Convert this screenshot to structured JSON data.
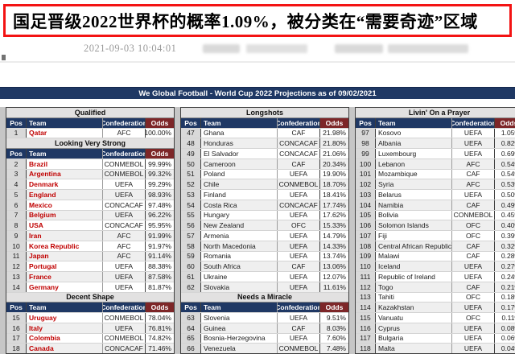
{
  "headline": {
    "text": "国足晋级2022世界杯的概率1.09%，被分类在“需要奇迹”区域"
  },
  "meta": {
    "timestamp": "2021-09-03 10:04:01"
  },
  "colors": {
    "headline_border": "#f31313",
    "navy_header": "#1f3864",
    "odds_header_red": "#7d2628",
    "team_name_red": "#c00000",
    "section_bg": "#e2e1e1",
    "pos_column_bg": "#d9d9d9",
    "row_stripe": "#efefef"
  },
  "table": {
    "title": "We Global Football - World Cup 2022 Projections as of 09/02/2021",
    "columns": [
      "Pos",
      "Team",
      "Confederation",
      "Odds"
    ],
    "panels": [
      {
        "accent_team_names": true,
        "blocks": [
          {
            "section": "Qualified",
            "rows": [
              [
                "1",
                "Qatar",
                "AFC",
                "100.00%"
              ]
            ]
          },
          {
            "section": "Looking Very Strong",
            "rows": [
              [
                "2",
                "Brazil",
                "CONMEBOL",
                "99.99%"
              ],
              [
                "3",
                "Argentina",
                "CONMEBOL",
                "99.32%"
              ],
              [
                "4",
                "Denmark",
                "UEFA",
                "99.29%"
              ],
              [
                "5",
                "England",
                "UEFA",
                "98.93%"
              ],
              [
                "6",
                "Mexico",
                "CONCACAF",
                "97.48%"
              ],
              [
                "7",
                "Belgium",
                "UEFA",
                "96.22%"
              ],
              [
                "8",
                "USA",
                "CONCACAF",
                "95.95%"
              ],
              [
                "9",
                "Iran",
                "AFC",
                "91.99%"
              ],
              [
                "10",
                "Korea Republic",
                "AFC",
                "91.97%"
              ],
              [
                "11",
                "Japan",
                "AFC",
                "91.14%"
              ],
              [
                "12",
                "Portugal",
                "UEFA",
                "88.38%"
              ],
              [
                "13",
                "France",
                "UEFA",
                "87.58%"
              ],
              [
                "14",
                "Germany",
                "UEFA",
                "81.87%"
              ]
            ]
          },
          {
            "section": "Decent Shape",
            "rows": [
              [
                "15",
                "Uruguay",
                "CONMEBOL",
                "78.04%"
              ],
              [
                "16",
                "Italy",
                "UEFA",
                "76.81%"
              ],
              [
                "17",
                "Colombia",
                "CONMEBOL",
                "74.82%"
              ],
              [
                "18",
                "Canada",
                "CONCACAF",
                "71.46%"
              ]
            ]
          }
        ]
      },
      {
        "accent_team_names": false,
        "blocks": [
          {
            "section": "Longshots",
            "rows": [
              [
                "47",
                "Ghana",
                "CAF",
                "21.98%"
              ],
              [
                "48",
                "Honduras",
                "CONCACAF",
                "21.80%"
              ],
              [
                "49",
                "El Salvador",
                "CONCACAF",
                "21.06%"
              ],
              [
                "50",
                "Cameroon",
                "CAF",
                "20.34%"
              ],
              [
                "51",
                "Poland",
                "UEFA",
                "19.90%"
              ],
              [
                "52",
                "Chile",
                "CONMEBOL",
                "18.70%"
              ],
              [
                "53",
                "Finland",
                "UEFA",
                "18.41%"
              ],
              [
                "54",
                "Costa Rica",
                "CONCACAF",
                "17.74%"
              ],
              [
                "55",
                "Hungary",
                "UEFA",
                "17.62%"
              ],
              [
                "56",
                "New Zealand",
                "OFC",
                "15.33%"
              ],
              [
                "57",
                "Armenia",
                "UEFA",
                "14.79%"
              ],
              [
                "58",
                "North Macedonia",
                "UEFA",
                "14.33%"
              ],
              [
                "59",
                "Romania",
                "UEFA",
                "13.74%"
              ],
              [
                "60",
                "South Africa",
                "CAF",
                "13.06%"
              ],
              [
                "61",
                "Ukraine",
                "UEFA",
                "12.07%"
              ],
              [
                "62",
                "Slovakia",
                "UEFA",
                "11.61%"
              ]
            ]
          },
          {
            "section": "Needs a Miracle",
            "rows": [
              [
                "63",
                "Slovenia",
                "UEFA",
                "9.51%"
              ],
              [
                "64",
                "Guinea",
                "CAF",
                "8.03%"
              ],
              [
                "65",
                "Bosnia-Herzegovina",
                "UEFA",
                "7.60%"
              ],
              [
                "66",
                "Venezuela",
                "CONMEBOL",
                "7.48%"
              ]
            ]
          }
        ]
      },
      {
        "accent_team_names": false,
        "blocks": [
          {
            "section": "Livin' On a Prayer",
            "rows": [
              [
                "97",
                "Kosovo",
                "UEFA",
                "1.05%"
              ],
              [
                "98",
                "Albania",
                "UEFA",
                "0.82%"
              ],
              [
                "99",
                "Luxembourg",
                "UEFA",
                "0.69%"
              ],
              [
                "100",
                "Lebanon",
                "AFC",
                "0.54%"
              ],
              [
                "101",
                "Mozambique",
                "CAF",
                "0.54%"
              ],
              [
                "102",
                "Syria",
                "AFC",
                "0.53%"
              ],
              [
                "103",
                "Belarus",
                "UEFA",
                "0.50%"
              ],
              [
                "104",
                "Namibia",
                "CAF",
                "0.49%"
              ],
              [
                "105",
                "Bolivia",
                "CONMEBOL",
                "0.45%"
              ],
              [
                "106",
                "Solomon Islands",
                "OFC",
                "0.40%"
              ],
              [
                "107",
                "Fiji",
                "OFC",
                "0.39%"
              ],
              [
                "108",
                "Central African Republic",
                "CAF",
                "0.32%"
              ],
              [
                "109",
                "Malawi",
                "CAF",
                "0.28%"
              ],
              [
                "110",
                "Iceland",
                "UEFA",
                "0.27%"
              ],
              [
                "111",
                "Republic of Ireland",
                "UEFA",
                "0.24%"
              ],
              [
                "112",
                "Togo",
                "CAF",
                "0.21%"
              ],
              [
                "113",
                "Tahiti",
                "OFC",
                "0.18%"
              ],
              [
                "114",
                "Kazakhstan",
                "UEFA",
                "0.17%"
              ],
              [
                "115",
                "Vanuatu",
                "OFC",
                "0.11%"
              ],
              [
                "116",
                "Cyprus",
                "UEFA",
                "0.08%"
              ],
              [
                "117",
                "Bulgaria",
                "UEFA",
                "0.06%"
              ],
              [
                "118",
                "Malta",
                "UEFA",
                "0.04%"
              ]
            ]
          }
        ]
      }
    ]
  }
}
